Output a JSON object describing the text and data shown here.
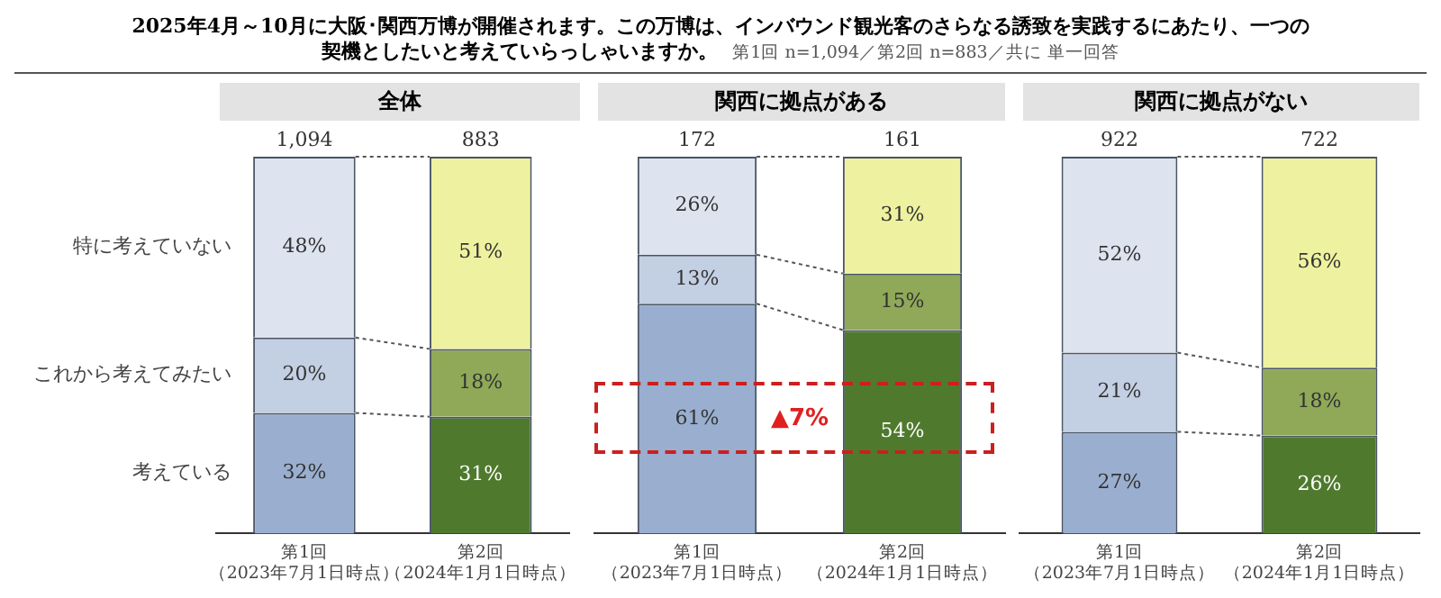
{
  "chart_data": [
    {
      "type": "bar",
      "title": "全体",
      "stacked": true,
      "tick_labels": "x",
      "annotations": [
        "2025年4月～10月に大阪･関西万博が開催されます。この万博は、インバウンド観光客のさらなる誘致を実践するにあたり、一つの契機としたいと考えていらっしゃいますか。",
        "第1回 n=1,094／第2回 n=883／共に 単一回答",
        "1,094",
        "883"
      ],
      "categories": [
        "第1回（2023年7月1日時点）",
        "第2回（2024年1月1日時点）"
      ],
      "series": [
        {
          "name": "考えている",
          "colors": [
            "#9aafcf",
            "#4f7a2e"
          ],
          "values": [
            32,
            31
          ],
          "value_labels": [
            "32%",
            "31%"
          ]
        },
        {
          "name": "これから考えてみたい",
          "colors": [
            "#c3cfe2",
            "#8fa958"
          ],
          "values": [
            20,
            18
          ],
          "value_labels": [
            "20%",
            "18%"
          ]
        },
        {
          "name": "特に考えていない",
          "colors": [
            "#dde4ef",
            "#eef2a0"
          ],
          "values": [
            48,
            51
          ],
          "value_labels": [
            "48%",
            "51%"
          ]
        }
      ]
    },
    {
      "type": "bar",
      "title": "関西に拠点がある",
      "stacked": true,
      "tick_labels": "x",
      "annotations": [
        "▲7%",
        "172",
        "161"
      ],
      "categories": [
        "第1回（2023年7月1日時点）",
        "第2回（2024年1月1日時点）"
      ],
      "series": [
        {
          "colors": [
            "#9aafcf",
            "#4f7a2e"
          ],
          "values": [
            61,
            54
          ],
          "value_labels": [
            "61%",
            "54%"
          ]
        },
        {
          "colors": [
            "#c3cfe2",
            "#8fa958"
          ],
          "values": [
            13,
            15
          ],
          "value_labels": [
            "13%",
            "15%"
          ]
        },
        {
          "colors": [
            "#dde4ef",
            "#eef2a0"
          ],
          "values": [
            26,
            31
          ],
          "value_labels": [
            "26%",
            "31%"
          ]
        }
      ]
    },
    {
      "type": "bar",
      "title": "関西に拠点がない",
      "stacked": true,
      "tick_labels": "x",
      "annotations": [
        "922",
        "722"
      ],
      "categories": [
        "第1回（2023年7月1日時点）",
        "第2回（2024年1月1日時点）"
      ],
      "series": [
        {
          "colors": [
            "#9aafcf",
            "#4f7a2e"
          ],
          "values": [
            27,
            26
          ],
          "value_labels": [
            "27%",
            "26%"
          ]
        },
        {
          "colors": [
            "#c3cfe2",
            "#8fa958"
          ],
          "values": [
            21,
            18
          ],
          "value_labels": [
            "21%",
            "18%"
          ]
        },
        {
          "colors": [
            "#dde4ef",
            "#eef2a0"
          ],
          "values": [
            52,
            56
          ],
          "value_labels": [
            "52%",
            "56%"
          ]
        }
      ]
    }
  ]
}
